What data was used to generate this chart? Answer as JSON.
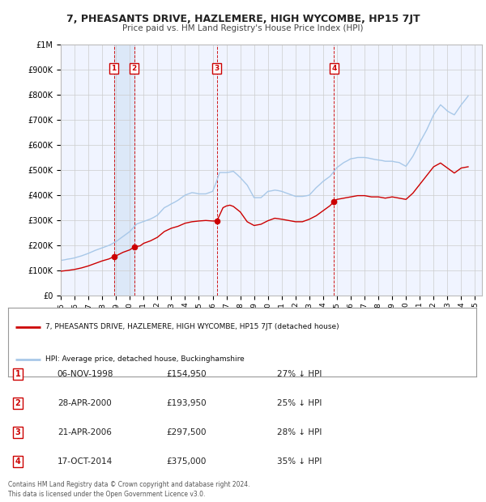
{
  "title": "7, PHEASANTS DRIVE, HAZLEMERE, HIGH WYCOMBE, HP15 7JT",
  "subtitle": "Price paid vs. HM Land Registry's House Price Index (HPI)",
  "ylim": [
    0,
    1000000
  ],
  "yticks": [
    0,
    100000,
    200000,
    300000,
    400000,
    500000,
    600000,
    700000,
    800000,
    900000,
    1000000
  ],
  "ytick_labels": [
    "£0",
    "£100K",
    "£200K",
    "£300K",
    "£400K",
    "£500K",
    "£600K",
    "£700K",
    "£800K",
    "£900K",
    "£1M"
  ],
  "xlim_start": 1995.0,
  "xlim_end": 2025.5,
  "purchases": [
    {
      "label": "1",
      "date_num": 1998.85,
      "price": 154950,
      "hpi_pct": "27% ↓ HPI",
      "date_str": "06-NOV-1998"
    },
    {
      "label": "2",
      "date_num": 2000.33,
      "price": 193950,
      "hpi_pct": "25% ↓ HPI",
      "date_str": "28-APR-2000"
    },
    {
      "label": "3",
      "date_num": 2006.31,
      "price": 297500,
      "hpi_pct": "28% ↓ HPI",
      "date_str": "21-APR-2006"
    },
    {
      "label": "4",
      "date_num": 2014.79,
      "price": 375000,
      "hpi_pct": "35% ↓ HPI",
      "date_str": "17-OCT-2014"
    }
  ],
  "hpi_color": "#a8c8e8",
  "price_color": "#cc0000",
  "marker_color": "#cc0000",
  "vline_color": "#cc0000",
  "label_box_color": "#cc0000",
  "grid_color": "#cccccc",
  "bg_color": "#f0f4ff",
  "span_color": "#dce8f8",
  "legend_label_price": "7, PHEASANTS DRIVE, HAZLEMERE, HIGH WYCOMBE, HP15 7JT (detached house)",
  "legend_label_hpi": "HPI: Average price, detached house, Buckinghamshire",
  "footer": "Contains HM Land Registry data © Crown copyright and database right 2024.\nThis data is licensed under the Open Government Licence v3.0.",
  "hpi_data": {
    "years": [
      1995.0,
      1995.25,
      1995.5,
      1995.75,
      1996.0,
      1996.25,
      1996.5,
      1996.75,
      1997.0,
      1997.25,
      1997.5,
      1997.75,
      1998.0,
      1998.25,
      1998.5,
      1998.75,
      1999.0,
      1999.25,
      1999.5,
      1999.75,
      2000.0,
      2000.25,
      2000.5,
      2000.75,
      2001.0,
      2001.25,
      2001.5,
      2001.75,
      2002.0,
      2002.25,
      2002.5,
      2002.75,
      2003.0,
      2003.25,
      2003.5,
      2003.75,
      2004.0,
      2004.25,
      2004.5,
      2004.75,
      2005.0,
      2005.25,
      2005.5,
      2005.75,
      2006.0,
      2006.25,
      2006.5,
      2006.75,
      2007.0,
      2007.25,
      2007.5,
      2007.75,
      2008.0,
      2008.25,
      2008.5,
      2008.75,
      2009.0,
      2009.25,
      2009.5,
      2009.75,
      2010.0,
      2010.25,
      2010.5,
      2010.75,
      2011.0,
      2011.25,
      2011.5,
      2011.75,
      2012.0,
      2012.25,
      2012.5,
      2012.75,
      2013.0,
      2013.25,
      2013.5,
      2013.75,
      2014.0,
      2014.25,
      2014.5,
      2014.75,
      2015.0,
      2015.25,
      2015.5,
      2015.75,
      2016.0,
      2016.25,
      2016.5,
      2016.75,
      2017.0,
      2017.25,
      2017.5,
      2017.75,
      2018.0,
      2018.25,
      2018.5,
      2018.75,
      2019.0,
      2019.25,
      2019.5,
      2019.75,
      2020.0,
      2020.25,
      2020.5,
      2020.75,
      2021.0,
      2021.25,
      2021.5,
      2021.75,
      2022.0,
      2022.25,
      2022.5,
      2022.75,
      2023.0,
      2023.25,
      2023.5,
      2023.75,
      2024.0,
      2024.25,
      2024.5
    ],
    "values": [
      140000,
      142000,
      145000,
      147000,
      150000,
      154000,
      158000,
      163000,
      168000,
      174000,
      180000,
      185000,
      190000,
      195000,
      200000,
      207000,
      215000,
      225000,
      235000,
      245000,
      255000,
      270000,
      285000,
      290000,
      295000,
      300000,
      305000,
      312000,
      320000,
      335000,
      350000,
      357000,
      365000,
      372000,
      380000,
      390000,
      400000,
      405000,
      410000,
      408000,
      405000,
      405000,
      405000,
      410000,
      415000,
      450000,
      490000,
      490000,
      490000,
      492000,
      495000,
      483000,
      470000,
      455000,
      440000,
      415000,
      390000,
      390000,
      390000,
      402000,
      415000,
      417000,
      420000,
      418000,
      415000,
      410000,
      405000,
      400000,
      395000,
      395000,
      395000,
      397000,
      400000,
      415000,
      430000,
      442000,
      455000,
      465000,
      475000,
      492000,
      510000,
      520000,
      530000,
      537000,
      545000,
      547000,
      550000,
      550000,
      550000,
      548000,
      545000,
      542000,
      540000,
      538000,
      535000,
      535000,
      535000,
      532000,
      530000,
      522000,
      515000,
      535000,
      555000,
      582000,
      610000,
      635000,
      660000,
      690000,
      720000,
      740000,
      760000,
      748000,
      735000,
      727000,
      720000,
      740000,
      760000,
      777000,
      795000
    ]
  },
  "price_data": {
    "years": [
      1995.0,
      1995.5,
      1996.0,
      1996.5,
      1997.0,
      1997.5,
      1998.0,
      1998.5,
      1998.85,
      1999.0,
      1999.5,
      2000.0,
      2000.33,
      2000.75,
      2001.0,
      2001.5,
      2002.0,
      2002.5,
      2003.0,
      2003.5,
      2004.0,
      2004.5,
      2005.0,
      2005.5,
      2006.0,
      2006.31,
      2006.75,
      2007.0,
      2007.25,
      2007.5,
      2008.0,
      2008.5,
      2009.0,
      2009.5,
      2010.0,
      2010.5,
      2011.0,
      2011.5,
      2012.0,
      2012.5,
      2013.0,
      2013.5,
      2014.0,
      2014.5,
      2014.79,
      2015.0,
      2015.5,
      2016.0,
      2016.5,
      2017.0,
      2017.5,
      2018.0,
      2018.5,
      2019.0,
      2019.5,
      2020.0,
      2020.5,
      2021.0,
      2021.5,
      2022.0,
      2022.5,
      2023.0,
      2023.5,
      2024.0,
      2024.5
    ],
    "values": [
      97000,
      100000,
      104000,
      110000,
      118000,
      128000,
      138000,
      146000,
      154950,
      158000,
      172000,
      182000,
      193950,
      198000,
      208000,
      218000,
      232000,
      255000,
      268000,
      276000,
      288000,
      294000,
      297000,
      299000,
      297000,
      297500,
      350000,
      357000,
      360000,
      355000,
      333000,
      294000,
      279000,
      284000,
      298000,
      308000,
      304000,
      299000,
      294000,
      294000,
      304000,
      318000,
      338000,
      358000,
      375000,
      383000,
      388000,
      393000,
      398000,
      398000,
      393000,
      393000,
      388000,
      393000,
      388000,
      383000,
      408000,
      443000,
      478000,
      513000,
      528000,
      508000,
      488000,
      508000,
      513000
    ]
  }
}
